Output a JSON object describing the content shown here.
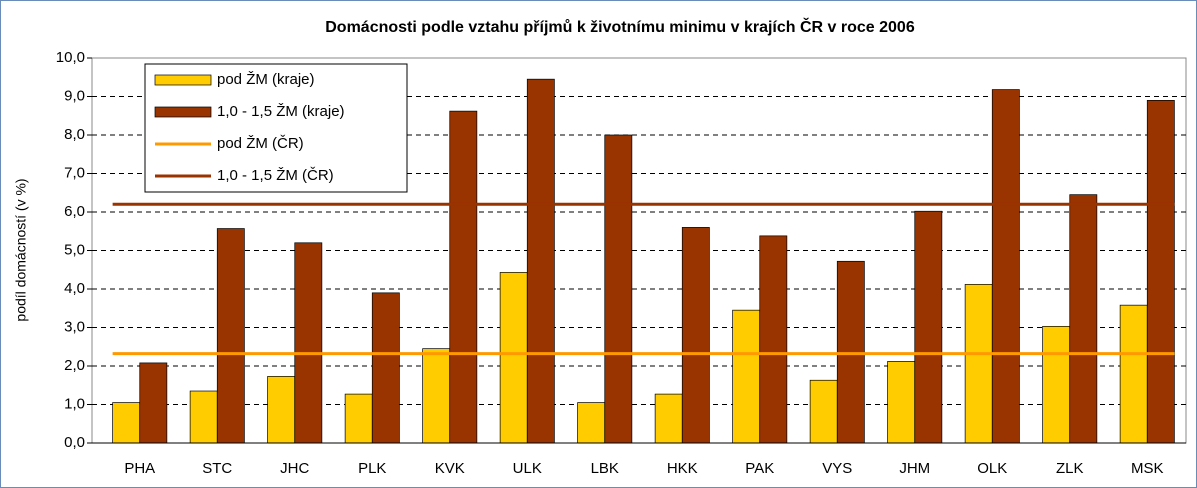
{
  "chart_data": {
    "type": "bar",
    "title": "Domácnosti podle vztahu příjmů k životnímu minimu v krajích ČR v roce 2006",
    "y_label": "podíl domácností (v %)",
    "categories": [
      "PHA",
      "STC",
      "JHC",
      "PLK",
      "KVK",
      "ULK",
      "LBK",
      "HKK",
      "PAK",
      "VYS",
      "JHM",
      "OLK",
      "ZLK",
      "MSK"
    ],
    "series": [
      {
        "name": "pod ŽM (kraje)",
        "color": "#ffcc00",
        "values": [
          1.05,
          1.35,
          1.73,
          1.27,
          2.45,
          4.43,
          1.05,
          1.27,
          3.45,
          1.63,
          2.12,
          4.12,
          3.03,
          3.58
        ]
      },
      {
        "name": "1,0 - 1,5 ŽM (kraje)",
        "color": "#993300",
        "values": [
          2.08,
          5.57,
          5.2,
          3.9,
          8.62,
          9.45,
          8.0,
          5.6,
          5.38,
          4.72,
          6.02,
          9.18,
          6.45,
          8.9
        ]
      }
    ],
    "reference_lines": [
      {
        "name": "pod ŽM (ČR)",
        "color": "#ff9900",
        "value": 2.32
      },
      {
        "name": "1,0 - 1,5 ŽM (ČR)",
        "color": "#993300",
        "value": 6.2
      }
    ],
    "ylim": [
      0,
      10
    ],
    "yticks": [
      {
        "value": 0,
        "label": "0,0"
      },
      {
        "value": 1,
        "label": "1,0"
      },
      {
        "value": 2,
        "label": "2,0"
      },
      {
        "value": 3,
        "label": "3,0"
      },
      {
        "value": 4,
        "label": "4,0"
      },
      {
        "value": 5,
        "label": "5,0"
      },
      {
        "value": 6,
        "label": "6,0"
      },
      {
        "value": 7,
        "label": "7,0"
      },
      {
        "value": 8,
        "label": "8,0"
      },
      {
        "value": 9,
        "label": "9,0"
      },
      {
        "value": 10,
        "label": "10,0"
      }
    ],
    "grid": true,
    "legend": "upper left"
  }
}
